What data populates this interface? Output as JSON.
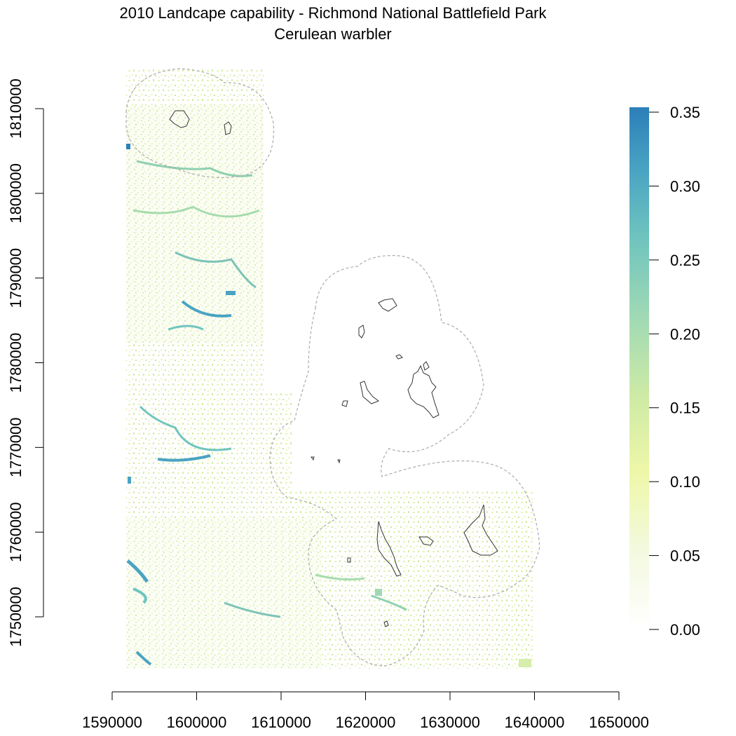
{
  "title": "2010 Landcape capability - Richmond National Battlefield Park",
  "subtitle": "Cerulean warbler",
  "colors": {
    "axis": "#000000",
    "park_outline": "#333333",
    "buffer_outline": "#aaaaaa",
    "palette": [
      "#ffffff",
      "#f3f9df",
      "#eef7a8",
      "#cdeaa6",
      "#9fd9b4",
      "#6fc4be",
      "#4aa3c3",
      "#2c7fb8"
    ]
  },
  "x_axis": {
    "ticks": [
      "1590000",
      "1600000",
      "1610000",
      "1620000",
      "1630000",
      "1640000",
      "1650000"
    ]
  },
  "y_axis": {
    "ticks": [
      "1750000",
      "1760000",
      "1770000",
      "1780000",
      "1790000",
      "1800000",
      "1810000"
    ]
  },
  "legend": {
    "type": "continuous colorbar",
    "min": 0.0,
    "max": 0.35,
    "ticks": [
      "0.00",
      "0.05",
      "0.10",
      "0.15",
      "0.20",
      "0.25",
      "0.30",
      "0.35"
    ]
  }
}
